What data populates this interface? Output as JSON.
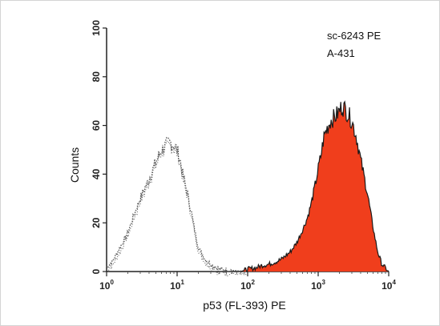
{
  "chart_data": {
    "type": "area",
    "title": "",
    "xlabel": "p53 (FL-393) PE",
    "ylabel": "Counts",
    "x_scale": "log",
    "xlim": [
      1,
      10000
    ],
    "ylim": [
      0,
      100
    ],
    "x_ticks": [
      {
        "value": 1,
        "base": "10",
        "exp": "0"
      },
      {
        "value": 10,
        "base": "10",
        "exp": "1"
      },
      {
        "value": 100,
        "base": "10",
        "exp": "2"
      },
      {
        "value": 1000,
        "base": "10",
        "exp": "3"
      },
      {
        "value": 10000,
        "base": "10",
        "exp": "4"
      }
    ],
    "y_ticks": [
      {
        "value": 0,
        "label": "0"
      },
      {
        "value": 20,
        "label": "20"
      },
      {
        "value": 40,
        "label": "40"
      },
      {
        "value": 60,
        "label": "60"
      },
      {
        "value": 80,
        "label": "80"
      },
      {
        "value": 100,
        "label": "100"
      }
    ],
    "grid": false,
    "annotations": [
      "sc-6243 PE",
      "A-431"
    ],
    "series": [
      {
        "style": "dotted outline",
        "color": "#555555",
        "x": [
          1,
          1.2,
          1.5,
          2,
          2.5,
          3,
          4,
          5,
          6,
          7,
          8,
          9,
          10,
          11,
          12,
          14,
          16,
          18,
          20,
          25,
          30,
          40,
          60,
          100
        ],
        "y": [
          2,
          4,
          9,
          16,
          24,
          30,
          38,
          45,
          50,
          52,
          53,
          52,
          50,
          46,
          40,
          32,
          24,
          16,
          10,
          5,
          3,
          1,
          0.5,
          0
        ]
      },
      {
        "style": "filled",
        "color": "#f03e1c",
        "x": [
          80,
          100,
          130,
          160,
          200,
          250,
          300,
          400,
          500,
          600,
          700,
          800,
          900,
          1000,
          1100,
          1200,
          1300,
          1500,
          1800,
          2000,
          2200,
          2500,
          3000,
          3500,
          4000,
          5000,
          6000,
          7000,
          8000,
          10000
        ],
        "y": [
          0,
          1,
          1.5,
          2.5,
          3,
          4,
          5,
          8,
          12,
          17,
          22,
          28,
          35,
          42,
          48,
          55,
          58,
          62,
          64,
          66,
          68,
          66,
          62,
          55,
          46,
          32,
          18,
          8,
          3,
          0
        ]
      }
    ]
  }
}
